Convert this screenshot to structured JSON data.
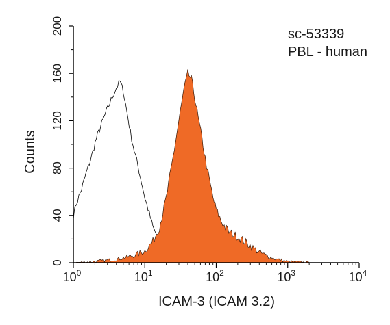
{
  "chart_data": {
    "type": "area",
    "title": "",
    "xlabel": "ICAM-3 (ICAM 3.2)",
    "ylabel": "Counts",
    "x_scale": "log",
    "xlim": [
      1,
      10000
    ],
    "ylim": [
      0,
      200
    ],
    "x_ticks": [
      {
        "base": "10",
        "exp": "0"
      },
      {
        "base": "10",
        "exp": "1"
      },
      {
        "base": "10",
        "exp": "2"
      },
      {
        "base": "10",
        "exp": "3"
      },
      {
        "base": "10",
        "exp": "4"
      }
    ],
    "y_ticks": [
      "0",
      "40",
      "80",
      "120",
      "160",
      "200"
    ],
    "annotations": [
      "sc-53339",
      "PBL - human"
    ],
    "series": [
      {
        "style": "outline",
        "color": "#000000",
        "x": [
          1,
          1.1,
          1.3,
          1.5,
          1.8,
          2.1,
          2.5,
          3.0,
          3.5,
          4.0,
          4.5,
          5.0,
          5.6,
          6.3,
          7.1,
          8.0,
          9.0,
          10,
          11.5,
          13,
          15,
          18,
          22,
          27,
          35,
          45,
          60,
          80,
          120,
          200,
          300,
          500,
          1000,
          10000
        ],
        "y": [
          40,
          50,
          62,
          75,
          90,
          105,
          118,
          130,
          140,
          148,
          153,
          145,
          128,
          110,
          95,
          82,
          68,
          55,
          42,
          30,
          22,
          16,
          13,
          11,
          9,
          8,
          6,
          5,
          4,
          3,
          2,
          1,
          0,
          0
        ]
      },
      {
        "style": "filled",
        "color": "#ef6a26",
        "x": [
          1,
          2,
          4,
          7,
          10,
          13,
          16,
          20,
          25,
          30,
          35,
          40,
          45,
          50,
          56,
          63,
          70,
          80,
          90,
          100,
          120,
          150,
          200,
          250,
          300,
          400,
          500,
          700,
          1000,
          2000,
          10000
        ],
        "y": [
          0,
          1,
          3,
          6,
          10,
          18,
          30,
          55,
          90,
          120,
          145,
          160,
          155,
          140,
          122,
          105,
          88,
          70,
          55,
          45,
          34,
          26,
          22,
          18,
          14,
          9,
          6,
          3,
          1,
          0,
          0
        ]
      }
    ]
  }
}
